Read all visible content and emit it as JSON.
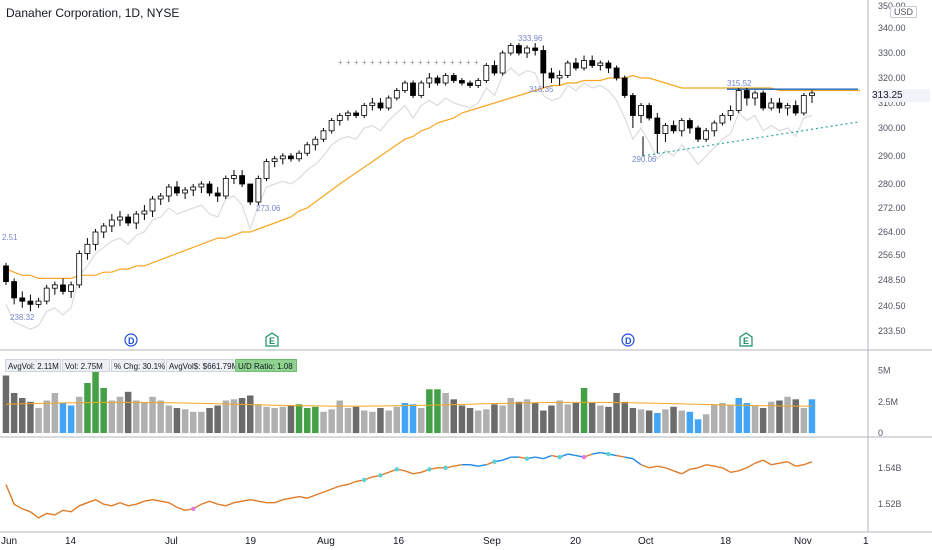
{
  "header": {
    "title": "Danaher Corporation, 1D, NYSE",
    "currency": "USD"
  },
  "volume_stats": {
    "avg_vol": "AvgVol: 2.11M",
    "vol": "Vol: 2.75M",
    "pct_chg": "% Chg: 30.1%",
    "avg_dollar_vol": "AvgVol$: $661.79M",
    "ud_ratio": "U/D Ratio: 1.08"
  },
  "current_price": "313.25",
  "colors": {
    "up": "#ffffff",
    "down": "#000000",
    "ma_orange": "#f5a623",
    "ma_gray": "#dcdcdc",
    "line_orange": "#e07b28",
    "line_blue": "#1e88e5",
    "resistance": "#1565c0",
    "trend": "#26a69a",
    "vol_gray": "#b0b0b0",
    "vol_dark": "#6b6b6b",
    "vol_green": "#43a047",
    "vol_blue": "#42a5f5"
  },
  "chart_data": {
    "type": "candlestick",
    "price_axis_labels": [
      "350.00",
      "340.00",
      "330.00",
      "320.00",
      "310.00",
      "300.00",
      "290.00",
      "280.00",
      "272.00",
      "264.00",
      "256.50",
      "248.50",
      "240.50",
      "233.50"
    ],
    "price_axis_values": [
      350,
      340,
      330,
      320,
      310,
      300,
      290,
      280,
      272,
      264,
      256.5,
      248.5,
      240.5,
      233.5
    ],
    "volume_axis_labels": [
      "5M",
      "2.5M",
      "0"
    ],
    "indicator_axis_labels": [
      "1.54B",
      "1.54B",
      "1.52B"
    ],
    "x_tick_labels": [
      "Jun",
      "14",
      "Jul",
      "19",
      "Aug",
      "16",
      "Sep",
      "20",
      "Oct",
      "18",
      "Nov",
      "1"
    ],
    "annotations": [
      "2.51",
      "238.32",
      "273.06",
      "333.96",
      "316.35",
      "290.06",
      "315.52"
    ],
    "event_markers": [
      "D",
      "E",
      "D",
      "E"
    ],
    "candles": [
      [
        253,
        254,
        247,
        248
      ],
      [
        248,
        249,
        241,
        243
      ],
      [
        243,
        245,
        240,
        242
      ],
      [
        242,
        244,
        239,
        241
      ],
      [
        241,
        243,
        240,
        242
      ],
      [
        242,
        247,
        241,
        246
      ],
      [
        246,
        248,
        244,
        247
      ],
      [
        247,
        249,
        244,
        245
      ],
      [
        245,
        248,
        243,
        247
      ],
      [
        247,
        258,
        246,
        257
      ],
      [
        257,
        262,
        255,
        260
      ],
      [
        260,
        265,
        258,
        264
      ],
      [
        264,
        267,
        262,
        266
      ],
      [
        266,
        270,
        264,
        268
      ],
      [
        268,
        271,
        266,
        269
      ],
      [
        269,
        270,
        266,
        267
      ],
      [
        267,
        271,
        265,
        270
      ],
      [
        270,
        273,
        268,
        271
      ],
      [
        271,
        276,
        269,
        275
      ],
      [
        275,
        277,
        273,
        276
      ],
      [
        276,
        280,
        274,
        279
      ],
      [
        279,
        281,
        276,
        277
      ],
      [
        277,
        279,
        275,
        278
      ],
      [
        278,
        280,
        276,
        279
      ],
      [
        279,
        281,
        277,
        280
      ],
      [
        280,
        281,
        276,
        277
      ],
      [
        277,
        279,
        274,
        276
      ],
      [
        276,
        283,
        275,
        282
      ],
      [
        282,
        285,
        280,
        283
      ],
      [
        283,
        285,
        279,
        280
      ],
      [
        280,
        280,
        273,
        274
      ],
      [
        274,
        283,
        273,
        282
      ],
      [
        282,
        289,
        281,
        288
      ],
      [
        288,
        290,
        286,
        289
      ],
      [
        289,
        291,
        287,
        290
      ],
      [
        290,
        291,
        288,
        289
      ],
      [
        289,
        292,
        288,
        291
      ],
      [
        291,
        295,
        290,
        294
      ],
      [
        294,
        297,
        292,
        296
      ],
      [
        296,
        300,
        295,
        299
      ],
      [
        299,
        304,
        298,
        303
      ],
      [
        303,
        306,
        301,
        305
      ],
      [
        305,
        307,
        303,
        306
      ],
      [
        306,
        307,
        304,
        305
      ],
      [
        305,
        310,
        304,
        309
      ],
      [
        309,
        312,
        307,
        310
      ],
      [
        310,
        312,
        307,
        308
      ],
      [
        308,
        313,
        307,
        312
      ],
      [
        312,
        316,
        311,
        315
      ],
      [
        315,
        319,
        314,
        318
      ],
      [
        318,
        319,
        312,
        313
      ],
      [
        313,
        319,
        312,
        318
      ],
      [
        318,
        322,
        316,
        320
      ],
      [
        320,
        321,
        317,
        318
      ],
      [
        318,
        322,
        317,
        321
      ],
      [
        321,
        322,
        318,
        319
      ],
      [
        319,
        320,
        317,
        318
      ],
      [
        318,
        319,
        316,
        317
      ],
      [
        317,
        320,
        316,
        319
      ],
      [
        319,
        326,
        318,
        325
      ],
      [
        325,
        327,
        321,
        322
      ],
      [
        322,
        331,
        321,
        330
      ],
      [
        330,
        334,
        329,
        333
      ],
      [
        333,
        334,
        329,
        330
      ],
      [
        330,
        333,
        328,
        332
      ],
      [
        332,
        334,
        329,
        331
      ],
      [
        331,
        333,
        316,
        322
      ],
      [
        322,
        324,
        318,
        320
      ],
      [
        320,
        323,
        317,
        321
      ],
      [
        321,
        327,
        320,
        326
      ],
      [
        326,
        328,
        323,
        324
      ],
      [
        324,
        329,
        323,
        327
      ],
      [
        327,
        329,
        324,
        325
      ],
      [
        325,
        327,
        323,
        326
      ],
      [
        326,
        327,
        322,
        324
      ],
      [
        324,
        325,
        319,
        320
      ],
      [
        320,
        321,
        312,
        313
      ],
      [
        313,
        314,
        300,
        305
      ],
      [
        305,
        310,
        302,
        309
      ],
      [
        309,
        310,
        303,
        304
      ],
      [
        304,
        306,
        291,
        298
      ],
      [
        298,
        302,
        295,
        301
      ],
      [
        301,
        303,
        298,
        299
      ],
      [
        299,
        304,
        297,
        303
      ],
      [
        303,
        304,
        298,
        300
      ],
      [
        300,
        301,
        295,
        296
      ],
      [
        296,
        300,
        295,
        299
      ],
      [
        299,
        303,
        297,
        302
      ],
      [
        302,
        306,
        301,
        305
      ],
      [
        305,
        309,
        303,
        307
      ],
      [
        307,
        316,
        306,
        315
      ],
      [
        315,
        316,
        309,
        312
      ],
      [
        312,
        315,
        309,
        314
      ],
      [
        314,
        315,
        307,
        308
      ],
      [
        308,
        312,
        307,
        310
      ],
      [
        310,
        312,
        306,
        308
      ],
      [
        308,
        310,
        305,
        309
      ],
      [
        309,
        311,
        305,
        306
      ],
      [
        306,
        314,
        305,
        313
      ],
      [
        313,
        315,
        310,
        314
      ]
    ],
    "volume_millions": [
      4.6,
      3.2,
      2.8,
      2.5,
      2.0,
      2.6,
      3.2,
      2.4,
      2.2,
      2.9,
      4.0,
      5.2,
      3.6,
      2.6,
      2.9,
      3.3,
      2.6,
      2.4,
      2.9,
      2.6,
      2.2,
      2.0,
      1.9,
      1.7,
      1.7,
      2.0,
      2.2,
      2.6,
      2.7,
      2.8,
      3.0,
      2.3,
      2.1,
      2.0,
      2.1,
      2.2,
      2.3,
      2.0,
      2.1,
      1.7,
      1.9,
      2.6,
      2.0,
      2.1,
      1.8,
      1.7,
      2.0,
      1.8,
      2.1,
      2.4,
      2.3,
      2.0,
      3.5,
      3.5,
      3.2,
      2.7,
      2.2,
      2.0,
      1.8,
      1.9,
      2.3,
      2.2,
      2.8,
      2.5,
      2.7,
      2.4,
      1.8,
      2.2,
      2.6,
      2.3,
      2.4,
      3.6,
      2.4,
      2.2,
      2.1,
      3.2,
      2.5,
      2.0,
      1.9,
      1.8,
      1.6,
      1.9,
      2.1,
      1.8,
      1.7,
      1.1,
      1.5,
      2.3,
      2.4,
      2.2,
      2.8,
      2.4,
      2.2,
      2.0,
      2.5,
      2.6,
      2.9,
      2.7,
      2.0,
      2.7
    ],
    "volume_ma_millions": 2.3,
    "ma_orange": [
      252,
      251,
      250,
      250,
      249,
      249,
      249,
      249,
      249,
      250,
      250,
      250,
      251,
      251,
      252,
      252,
      253,
      253,
      254,
      255,
      256,
      257,
      258,
      259,
      260,
      261,
      262,
      262,
      263,
      264,
      264,
      265,
      266,
      267,
      268,
      269,
      271,
      272,
      274,
      276,
      278,
      280,
      282,
      284,
      286,
      288,
      290,
      292,
      294,
      296,
      297,
      299,
      300,
      302,
      303,
      304,
      306,
      307,
      308,
      309,
      310,
      311,
      312,
      313,
      314,
      315,
      316,
      317,
      317,
      318,
      318,
      319,
      319,
      319,
      320,
      320,
      320,
      321,
      320,
      320,
      319,
      318,
      317,
      316,
      316,
      316,
      316,
      316,
      316,
      316,
      316,
      316,
      316,
      316,
      316,
      315,
      315,
      315,
      315,
      315
    ],
    "indicator": [
      1.548,
      1.535,
      1.532,
      1.53,
      1.526,
      1.529,
      1.528,
      1.531,
      1.53,
      1.534,
      1.536,
      1.538,
      1.535,
      1.534,
      1.536,
      1.534,
      1.535,
      1.537,
      1.538,
      1.537,
      1.536,
      1.533,
      1.531,
      1.532,
      1.535,
      1.537,
      1.535,
      1.534,
      1.536,
      1.537,
      1.538,
      1.537,
      1.536,
      1.536,
      1.538,
      1.539,
      1.54,
      1.539,
      1.541,
      1.543,
      1.545,
      1.547,
      1.548,
      1.55,
      1.551,
      1.553,
      1.554,
      1.556,
      1.558,
      1.557,
      1.555,
      1.556,
      1.558,
      1.559,
      1.559,
      1.56,
      1.561,
      1.561,
      1.56,
      1.561,
      1.563,
      1.564,
      1.566,
      1.566,
      1.565,
      1.566,
      1.565,
      1.567,
      1.566,
      1.568,
      1.567,
      1.566,
      1.568,
      1.569,
      1.568,
      1.567,
      1.566,
      1.565,
      1.561,
      1.559,
      1.56,
      1.559,
      1.557,
      1.555,
      1.558,
      1.559,
      1.561,
      1.56,
      1.559,
      1.556,
      1.557,
      1.559,
      1.562,
      1.564,
      1.561,
      1.562,
      1.563,
      1.56,
      1.561,
      1.563
    ],
    "indicator_color_from": 55
  }
}
